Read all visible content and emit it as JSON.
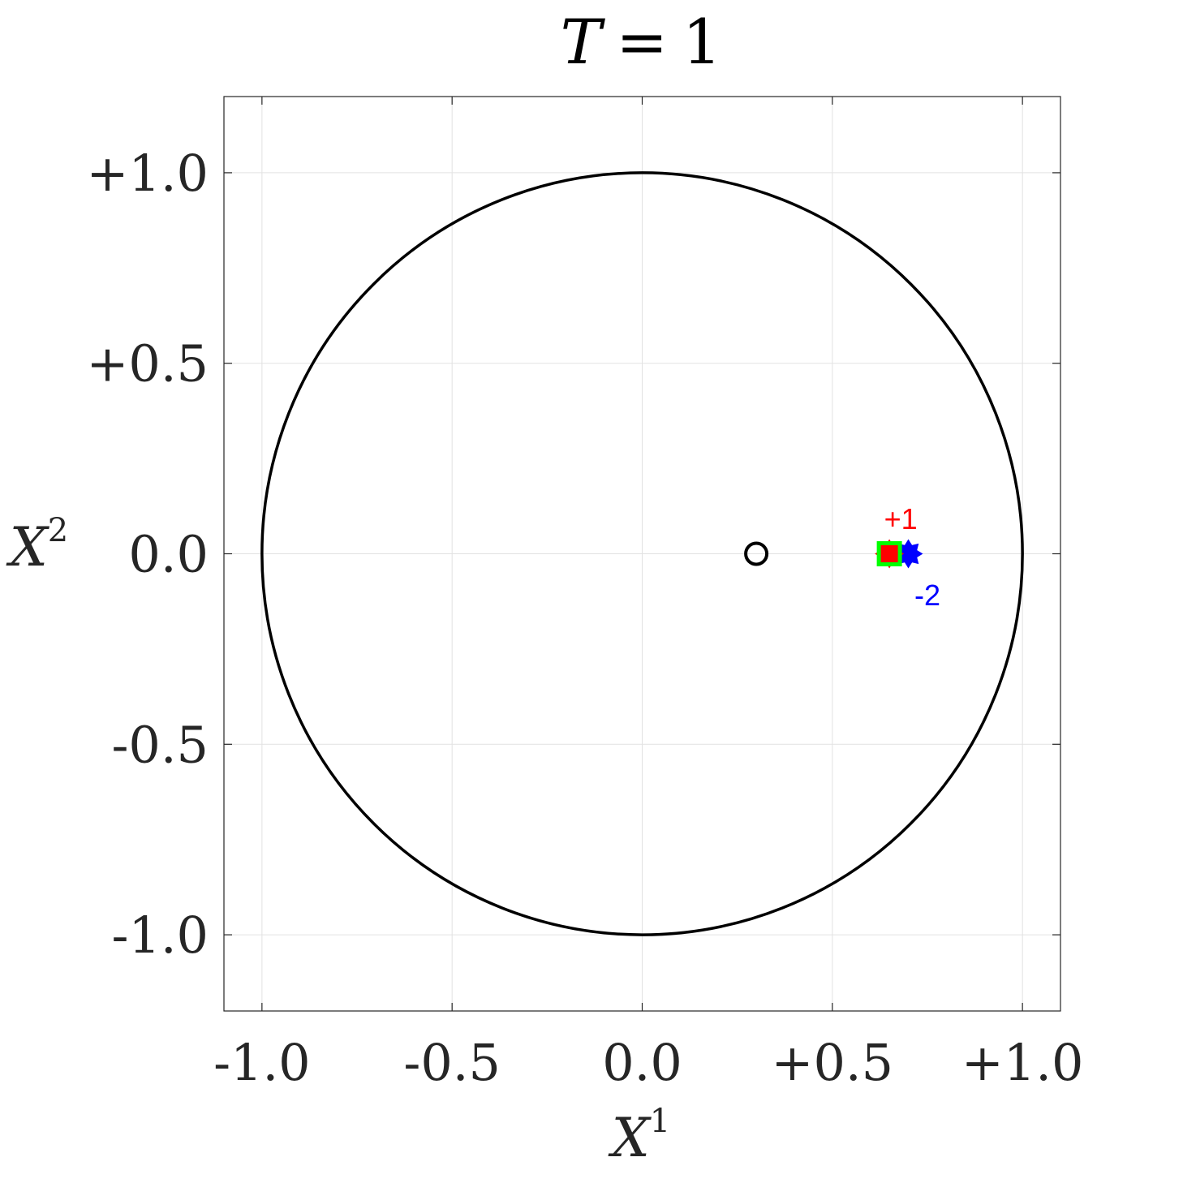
{
  "chart_data": {
    "type": "scatter",
    "title": "T = 1",
    "title_parts": {
      "var": "T",
      "op": "=",
      "value": "1"
    },
    "xlabel": {
      "base": "X",
      "sup": "1"
    },
    "ylabel": {
      "base": "X",
      "sup": "2"
    },
    "xlim": [
      -1.1,
      1.1
    ],
    "ylim": [
      -1.2,
      1.2
    ],
    "x_ticks": [
      -1.0,
      -0.5,
      0.0,
      0.5,
      1.0
    ],
    "x_tick_labels": [
      "-1.0",
      "-0.5",
      "0.0",
      "+0.5",
      "+1.0"
    ],
    "y_ticks": [
      1.0,
      0.5,
      0.0,
      -0.5,
      -1.0
    ],
    "y_tick_labels": [
      "+1.0",
      "+0.5",
      "0.0",
      "-0.5",
      "-1.0"
    ],
    "grid": true,
    "unit_circle": {
      "center": [
        0,
        0
      ],
      "radius": 1.0,
      "color": "#000000"
    },
    "points": [
      {
        "x": 0.3,
        "y": 0.0,
        "marker": "circle-open",
        "color": "#000000"
      },
      {
        "x": 0.7,
        "y": 0.0,
        "marker": "star-filled",
        "color": "#0000ff"
      },
      {
        "x": 0.65,
        "y": 0.0,
        "marker": "star-filled",
        "color": "#ff0000"
      },
      {
        "x": 0.65,
        "y": 0.0,
        "marker": "square-open",
        "color": "#00ff00"
      },
      {
        "x": 0.65,
        "y": 0.0,
        "marker": "square-filled",
        "color": "#ff0000"
      }
    ],
    "annotations": [
      {
        "text": "+1",
        "x": 0.68,
        "y": 0.09,
        "color": "#ff0000"
      },
      {
        "text": "-2",
        "x": 0.75,
        "y": -0.11,
        "color": "#0000ff"
      }
    ]
  }
}
